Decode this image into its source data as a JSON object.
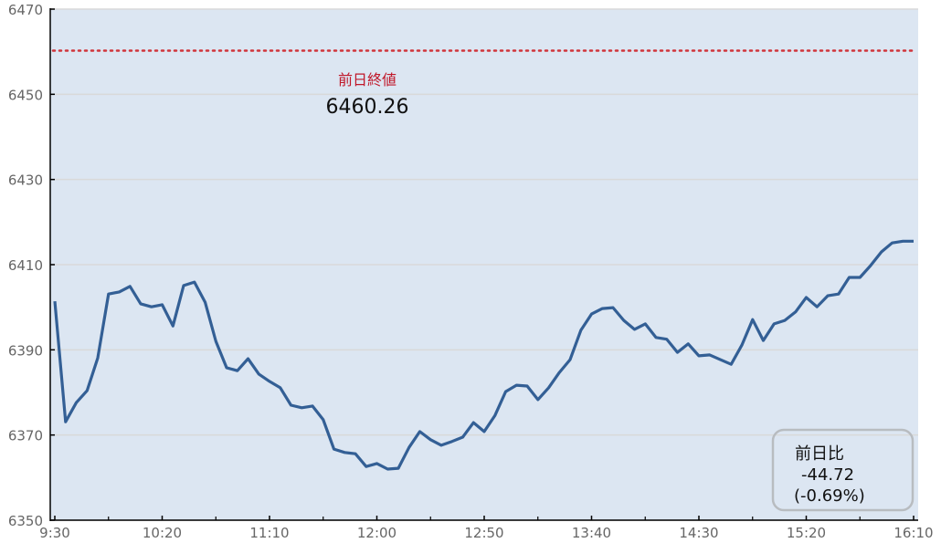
{
  "chart_data": {
    "type": "line",
    "title": "",
    "xlabel": "",
    "ylabel": "",
    "ylim": [
      6350,
      6470
    ],
    "y_ticks": [
      "6350",
      "6370",
      "6390",
      "6410",
      "6430",
      "6450",
      "6470"
    ],
    "x_ticks": [
      "9:30",
      "10:20",
      "11:10",
      "12:00",
      "12:50",
      "13:40",
      "14:30",
      "15:20",
      "16:10"
    ],
    "x_range": [
      "9:30",
      "16:10"
    ],
    "x_interval_minutes": 5,
    "grid": "horizontal",
    "colors": {
      "line": "#335f95",
      "background": "#dce6f2",
      "reference": "#d0343a",
      "grid": "#d9d9d9",
      "box_border": "#b8bcc0"
    },
    "series": [
      {
        "values": [
          6401.4,
          6373.1,
          6377.6,
          6380.4,
          6388.1,
          6403.1,
          6403.6,
          6404.9,
          6400.8,
          6400.1,
          6400.6,
          6395.6,
          6405.1,
          6405.9,
          6401.2,
          6392.0,
          6385.8,
          6385.1,
          6387.9,
          6384.3,
          6382.6,
          6381.1,
          6377.0,
          6376.4,
          6376.8,
          6373.6,
          6366.7,
          6365.9,
          6365.6,
          6362.6,
          6363.3,
          6362.0,
          6362.2,
          6367.1,
          6370.8,
          6368.9,
          6367.6,
          6368.5,
          6369.5,
          6372.9,
          6370.8,
          6374.6,
          6380.2,
          6381.7,
          6381.5,
          6378.3,
          6381.1,
          6384.7,
          6387.7,
          6394.6,
          6398.4,
          6399.7,
          6399.9,
          6396.9,
          6394.8,
          6396.1,
          6392.9,
          6392.5,
          6389.4,
          6391.4,
          6388.6,
          6388.8,
          6387.7,
          6386.6,
          6391.1,
          6397.1,
          6392.2,
          6396.1,
          6396.9,
          6398.9,
          6402.3,
          6400.1,
          6402.7,
          6403.1,
          6407.0,
          6407.0,
          6409.8,
          6413.0,
          6415.1,
          6415.5,
          6415.5
        ]
      }
    ],
    "reference_line": {
      "value": 6460.26,
      "label": "前日終値",
      "value_text": "6460.26",
      "style": "dotted"
    },
    "annotation_box": {
      "label": "前日比",
      "change": "-44.72",
      "percent": "(-0.69%)"
    }
  }
}
